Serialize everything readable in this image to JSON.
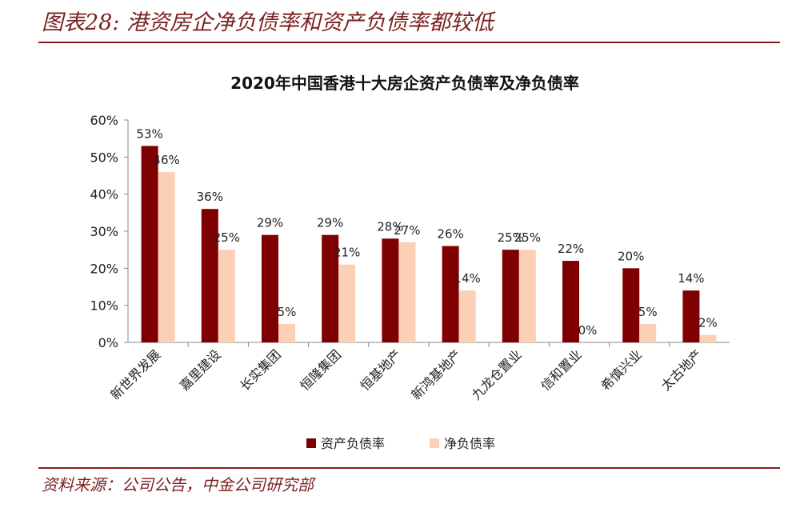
{
  "figure": {
    "title": "图表28: 港资房企净负债率和资产负债率都较低",
    "source": "资料来源：公司公告，中金公司研究部"
  },
  "chart_data": {
    "type": "bar",
    "title": "2020年中国香港十大房企资产负债率及净负债率",
    "xlabel": "",
    "ylabel": "",
    "ylim": [
      0,
      60
    ],
    "yticks": [
      "0%",
      "10%",
      "20%",
      "30%",
      "40%",
      "50%",
      "60%"
    ],
    "categories": [
      "新世界发展",
      "嘉里建设",
      "长实集团",
      "恒隆集团",
      "恒基地产",
      "新鸿基地产",
      "九龙仓置业",
      "信和置业",
      "希慎兴业",
      "太古地产"
    ],
    "series": [
      {
        "name": "资产负债率",
        "color": "#7f0000",
        "values": [
          53,
          36,
          29,
          29,
          28,
          26,
          25,
          22,
          20,
          14
        ],
        "labels": [
          "53%",
          "36%",
          "29%",
          "29%",
          "28%",
          "26%",
          "25%",
          "22%",
          "20%",
          "14%"
        ]
      },
      {
        "name": "净负债率",
        "color": "#fbd0b4",
        "values": [
          46,
          25,
          5,
          21,
          27,
          14,
          25,
          0,
          5,
          2
        ],
        "labels": [
          "46%",
          "25%",
          "5%",
          "21%",
          "27%",
          "14%",
          "25%",
          "0%",
          "5%",
          "2%"
        ]
      }
    ],
    "grid": false,
    "legend_position": "bottom"
  }
}
